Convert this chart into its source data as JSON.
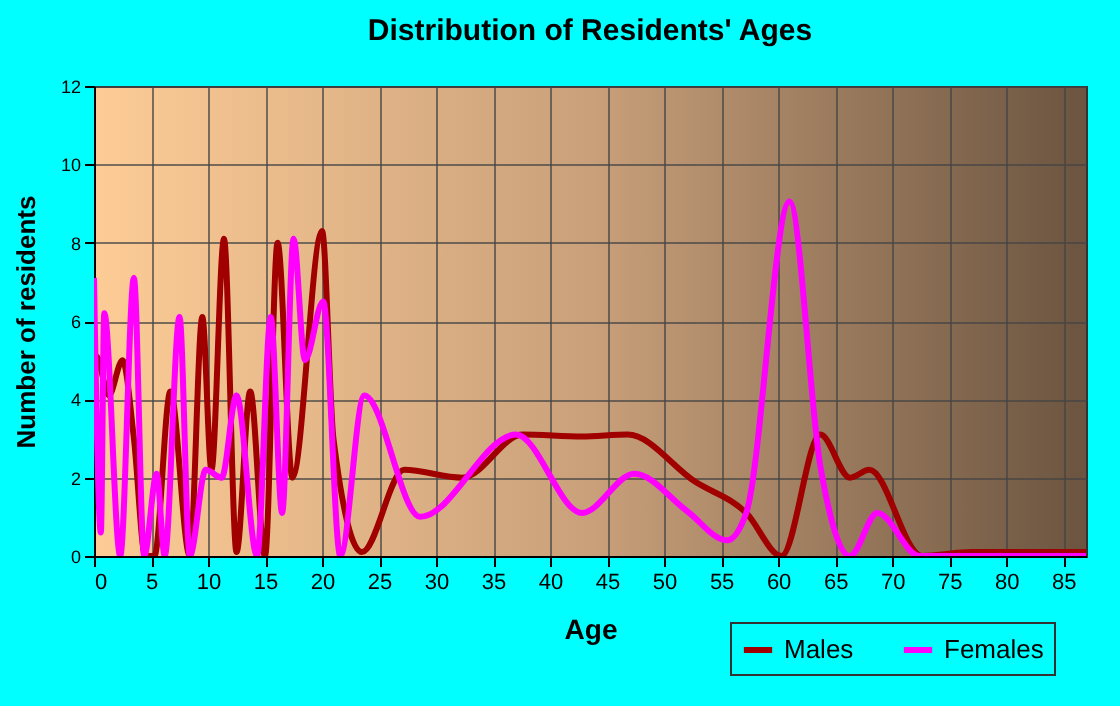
{
  "chart_data": {
    "type": "line",
    "title": "Distribution of Residents' Ages",
    "xlabel": "Age",
    "ylabel": "Number of residents",
    "xlim": [
      0,
      87
    ],
    "xticks": [
      0,
      5,
      10,
      15,
      20,
      25,
      30,
      35,
      40,
      45,
      50,
      55,
      60,
      65,
      70,
      75,
      80,
      85
    ],
    "ylim": [
      0,
      12
    ],
    "yticks": [
      0,
      2,
      4,
      6,
      8,
      10,
      12
    ],
    "grid": true,
    "legend": "bottom right",
    "marker": "none",
    "line_style": "solid",
    "series": [
      {
        "name": "Males",
        "color": "#a00000",
        "x": [
          0,
          0.2,
          1.3,
          2.5,
          3.5,
          4.5,
          5.3,
          6.7,
          8.4,
          9.5,
          10.3,
          11.4,
          12.5,
          13.7,
          15,
          16.1,
          17.4,
          20,
          21,
          23.5,
          27.2,
          32.3,
          37.6,
          42.8,
          46.8,
          52.7,
          57.2,
          60.3,
          63.7,
          66.3,
          68,
          72.6,
          77,
          87
        ],
        "values": [
          4,
          5.1,
          4.1,
          5,
          3,
          0,
          0,
          4.2,
          0,
          6.1,
          2.2,
          8.1,
          0.1,
          4.2,
          0,
          8,
          2,
          8.3,
          3,
          0.1,
          2.2,
          2,
          3.1,
          3.05,
          3.1,
          1.9,
          1.1,
          0,
          3.1,
          2,
          2.2,
          0,
          0.1,
          0.1
        ]
      },
      {
        "name": "Females",
        "color": "#ff00ff",
        "x": [
          0,
          0.6,
          0.9,
          2.3,
          3.5,
          4.4,
          5.5,
          6.2,
          7.5,
          8.4,
          9.8,
          11.2,
          12.5,
          14.3,
          15.5,
          16.5,
          17.5,
          18.5,
          20.1,
          21.6,
          23.7,
          28.6,
          37,
          42.8,
          47.4,
          52,
          55.5,
          57.2,
          61,
          63.7,
          66.3,
          68.7,
          72.4,
          87
        ],
        "values": [
          7.1,
          0.6,
          6.2,
          0,
          7.1,
          0,
          2.1,
          0,
          6.1,
          0,
          2.2,
          2,
          4.1,
          0,
          6.1,
          1.1,
          8.1,
          5,
          6.5,
          0,
          4.1,
          1,
          3.1,
          1.1,
          2.1,
          1.15,
          0.4,
          1.1,
          9.05,
          2.3,
          0,
          1.1,
          0,
          0
        ]
      }
    ]
  }
}
